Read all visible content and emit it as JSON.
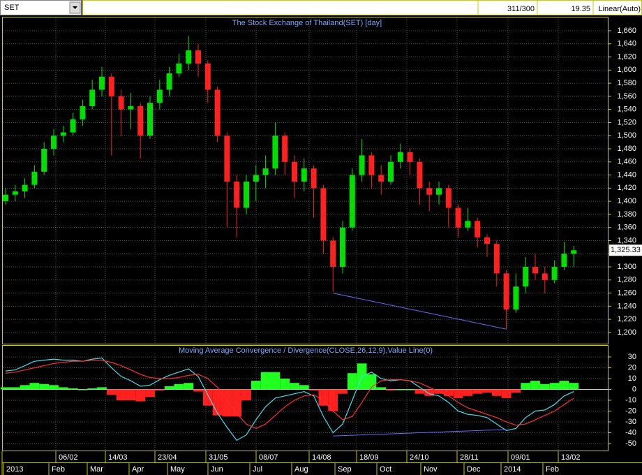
{
  "toolbar": {
    "symbol": "SET",
    "bars": "311/300",
    "value": "19.35",
    "scale": "Linear(Auto)"
  },
  "chart_data": [
    {
      "type": "candlestick",
      "title": "The Stock Exchange of Thailand(SET) [day]",
      "up_color": "#00e000",
      "down_color": "#ff2020",
      "open": [
        1400,
        1410,
        1415,
        1425,
        1445,
        1480,
        1500,
        1505,
        1525,
        1545,
        1570,
        1590,
        1560,
        1540,
        1545,
        1500,
        1550,
        1570,
        1595,
        1610,
        1630,
        1610,
        1570,
        1500,
        1430,
        1390,
        1430,
        1440,
        1450,
        1500,
        1460,
        1430,
        1450,
        1420,
        1340,
        1300,
        1360,
        1440,
        1470,
        1440,
        1430,
        1460,
        1475,
        1460,
        1420,
        1410,
        1420,
        1390,
        1360,
        1370,
        1345,
        1335,
        1290,
        1235,
        1270,
        1300,
        1290,
        1280,
        1300,
        1320
      ],
      "high": [
        1420,
        1425,
        1435,
        1455,
        1490,
        1510,
        1515,
        1535,
        1555,
        1585,
        1605,
        1595,
        1570,
        1565,
        1550,
        1560,
        1585,
        1605,
        1625,
        1652,
        1640,
        1615,
        1575,
        1505,
        1440,
        1440,
        1455,
        1470,
        1520,
        1505,
        1470,
        1465,
        1455,
        1425,
        1345,
        1370,
        1450,
        1495,
        1475,
        1455,
        1470,
        1488,
        1480,
        1465,
        1430,
        1430,
        1425,
        1395,
        1390,
        1375,
        1350,
        1340,
        1295,
        1290,
        1315,
        1320,
        1300,
        1310,
        1338,
        1332
      ],
      "low": [
        1395,
        1400,
        1405,
        1420,
        1440,
        1470,
        1490,
        1500,
        1515,
        1540,
        1560,
        1470,
        1500,
        1510,
        1465,
        1495,
        1540,
        1560,
        1590,
        1600,
        1590,
        1550,
        1490,
        1360,
        1345,
        1380,
        1400,
        1420,
        1440,
        1440,
        1405,
        1415,
        1375,
        1320,
        1262,
        1290,
        1355,
        1430,
        1420,
        1410,
        1425,
        1450,
        1440,
        1395,
        1385,
        1395,
        1360,
        1345,
        1355,
        1330,
        1315,
        1270,
        1205,
        1230,
        1260,
        1280,
        1260,
        1275,
        1295,
        1300
      ],
      "close": [
        1410,
        1415,
        1425,
        1445,
        1480,
        1500,
        1505,
        1525,
        1545,
        1570,
        1590,
        1560,
        1540,
        1545,
        1500,
        1550,
        1570,
        1595,
        1610,
        1630,
        1610,
        1570,
        1500,
        1430,
        1390,
        1430,
        1440,
        1450,
        1500,
        1460,
        1430,
        1450,
        1420,
        1340,
        1300,
        1360,
        1440,
        1470,
        1440,
        1430,
        1460,
        1475,
        1460,
        1420,
        1410,
        1420,
        1390,
        1360,
        1370,
        1345,
        1335,
        1290,
        1235,
        1270,
        1300,
        1290,
        1280,
        1300,
        1320,
        1325.33
      ],
      "last_price": {
        "value": 1325.33,
        "label": "1,325.33"
      },
      "trendline": {
        "color": "#6a6aff",
        "values": [
          1260,
          1205
        ]
      },
      "ylim": [
        1185,
        1670
      ],
      "yticks": [
        {
          "value": 1200,
          "label": "1,200"
        },
        {
          "value": 1220,
          "label": "1,220"
        },
        {
          "value": 1240,
          "label": "1,240"
        },
        {
          "value": 1260,
          "label": "1,260"
        },
        {
          "value": 1280,
          "label": "1,280"
        },
        {
          "value": 1300,
          "label": "1,300"
        },
        {
          "value": 1320,
          "label": "1,320"
        },
        {
          "value": 1340,
          "label": "1,340"
        },
        {
          "value": 1360,
          "label": "1,360"
        },
        {
          "value": 1380,
          "label": "1,380"
        },
        {
          "value": 1400,
          "label": "1,400"
        },
        {
          "value": 1420,
          "label": "1,420"
        },
        {
          "value": 1440,
          "label": "1,440"
        },
        {
          "value": 1460,
          "label": "1,460"
        },
        {
          "value": 1480,
          "label": "1,480"
        },
        {
          "value": 1500,
          "label": "1,500"
        },
        {
          "value": 1520,
          "label": "1,520"
        },
        {
          "value": 1540,
          "label": "1,540"
        },
        {
          "value": 1560,
          "label": "1,560"
        },
        {
          "value": 1580,
          "label": "1,580"
        },
        {
          "value": 1600,
          "label": "1,600"
        },
        {
          "value": 1620,
          "label": "1,620"
        },
        {
          "value": 1640,
          "label": "1,640"
        },
        {
          "value": 1660,
          "label": "1,660"
        }
      ],
      "grid": true
    },
    {
      "type": "macd",
      "title": "Moving Average Convergence / Divergence(CLOSE,26,12,9),Value Line(0)",
      "series": [
        {
          "name": "MACD",
          "color": "#40e0f0",
          "values": [
            17,
            18,
            22,
            26,
            27,
            28,
            27,
            27,
            26,
            28,
            29,
            20,
            12,
            8,
            3,
            4,
            9,
            13,
            16,
            19,
            12,
            -5,
            -22,
            -35,
            -47,
            -42,
            -28,
            -16,
            -8,
            -6,
            -4,
            -2,
            -6,
            -25,
            -40,
            -32,
            -10,
            12,
            16,
            10,
            8,
            9,
            8,
            2,
            -4,
            -6,
            -12,
            -20,
            -23,
            -24,
            -26,
            -32,
            -38,
            -36,
            -26,
            -20,
            -19,
            -14,
            -6,
            -2
          ]
        },
        {
          "name": "Signal",
          "color": "#ff3030",
          "values": [
            15,
            16,
            18,
            20,
            22,
            24,
            25,
            26,
            26,
            27,
            27,
            25,
            22,
            18,
            14,
            11,
            10,
            10,
            11,
            13,
            14,
            10,
            2,
            -10,
            -22,
            -32,
            -36,
            -32,
            -24,
            -16,
            -10,
            -6,
            -5,
            -10,
            -20,
            -28,
            -25,
            -12,
            2,
            8,
            9,
            9,
            8,
            6,
            2,
            -2,
            -6,
            -12,
            -17,
            -20,
            -23,
            -26,
            -30,
            -33,
            -32,
            -28,
            -24,
            -20,
            -14,
            -8
          ]
        }
      ],
      "histogram": {
        "up_color": "#20ff20",
        "down_color": "#ff2020",
        "values": [
          2,
          2,
          4,
          6,
          5,
          4,
          2,
          1,
          0,
          1,
          2,
          -5,
          -10,
          -10,
          -11,
          -7,
          -1,
          3,
          5,
          6,
          -2,
          -15,
          -24,
          -25,
          -25,
          -10,
          8,
          16,
          16,
          10,
          6,
          4,
          -1,
          -15,
          -20,
          -4,
          15,
          24,
          14,
          2,
          -1,
          0,
          0,
          -4,
          -6,
          -4,
          -6,
          -8,
          -6,
          -4,
          -3,
          -6,
          -8,
          -3,
          6,
          8,
          5,
          6,
          8,
          6
        ]
      },
      "value_line": 0,
      "trendline": {
        "color": "#6a6aff",
        "values": [
          -43,
          -37
        ]
      },
      "ylim": [
        -56,
        40
      ],
      "yticks": [
        30,
        20,
        10,
        0,
        -10,
        -20,
        -30,
        -40,
        -50
      ],
      "grid": true
    }
  ],
  "x_labels_top": [
    "06/02",
    "14/03",
    "23/04",
    "31/05",
    "08/07",
    "14/08",
    "18/09",
    "24/10",
    "28/11",
    "09/01",
    "13/02"
  ],
  "x_labels_bottom": [
    "2013",
    "Feb",
    "Mar",
    "Apr",
    "May",
    "Jun",
    "Jul",
    "Aug",
    "Sep",
    "Oct",
    "Nov",
    "Dec",
    "2014",
    "Feb"
  ]
}
